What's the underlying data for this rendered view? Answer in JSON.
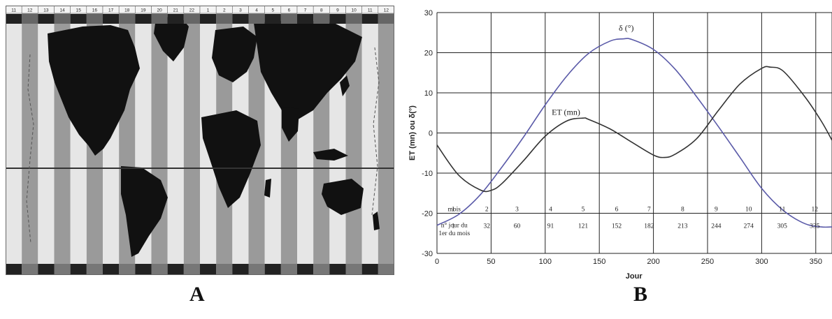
{
  "panels": {
    "a_label": "A",
    "b_label": "B"
  },
  "map": {
    "zone_labels_top": [
      "11",
      "12",
      "13",
      "14",
      "15",
      "16",
      "17",
      "18",
      "19",
      "20",
      "21",
      "22",
      "1",
      "2",
      "3",
      "4",
      "5",
      "6",
      "7",
      "8",
      "9",
      "10",
      "11",
      "12"
    ],
    "colors": {
      "stripe_dark": "#9a9a9a",
      "stripe_light": "#e6e6e6",
      "land": "#111111",
      "equator": "#333333"
    }
  },
  "chart_data": {
    "type": "line",
    "xlabel": "Jour",
    "ylabel": "ET (mn) ou δ(°)",
    "xlim": [
      0,
      365
    ],
    "ylim": [
      -30,
      30
    ],
    "xticks": [
      0,
      50,
      100,
      150,
      200,
      250,
      300,
      350
    ],
    "yticks": [
      -30,
      -20,
      -10,
      0,
      10,
      20,
      30
    ],
    "grid": true,
    "series": [
      {
        "name": "δ (°)",
        "color": "#5a5aa8",
        "x": [
          0,
          20,
          40,
          60,
          80,
          100,
          120,
          140,
          160,
          172,
          180,
          200,
          220,
          240,
          260,
          280,
          300,
          320,
          340,
          355,
          365
        ],
        "y": [
          -23.0,
          -20.3,
          -15.4,
          -8.5,
          -1.0,
          7.0,
          14.2,
          19.8,
          22.9,
          23.44,
          23.3,
          20.8,
          15.9,
          9.0,
          1.6,
          -6.1,
          -13.8,
          -19.3,
          -22.6,
          -23.4,
          -23.4
        ]
      },
      {
        "name": "ET (mn)",
        "color": "#333333",
        "x": [
          0,
          20,
          40,
          50,
          60,
          80,
          100,
          120,
          135,
          140,
          160,
          180,
          200,
          210,
          220,
          240,
          260,
          280,
          300,
          308,
          320,
          340,
          355,
          365
        ],
        "y": [
          -3.0,
          -10.5,
          -14.2,
          -14.3,
          -12.6,
          -6.9,
          -0.8,
          3.0,
          3.7,
          3.4,
          1.0,
          -2.3,
          -5.5,
          -6.1,
          -5.3,
          -1.4,
          5.6,
          12.2,
          16.1,
          16.4,
          15.4,
          9.0,
          3.0,
          -1.8
        ]
      }
    ],
    "annotations": [
      "δ (°)",
      "ET (mn)"
    ],
    "table": {
      "row_labels": [
        "mois",
        "n° jour du",
        "1er du mois"
      ],
      "months": [
        "1",
        "2",
        "3",
        "4",
        "5",
        "6",
        "7",
        "8",
        "9",
        "10",
        "11",
        "12"
      ],
      "first_day": [
        "1",
        "32",
        "60",
        "91",
        "121",
        "152",
        "182",
        "213",
        "244",
        "274",
        "305",
        "335"
      ]
    }
  }
}
